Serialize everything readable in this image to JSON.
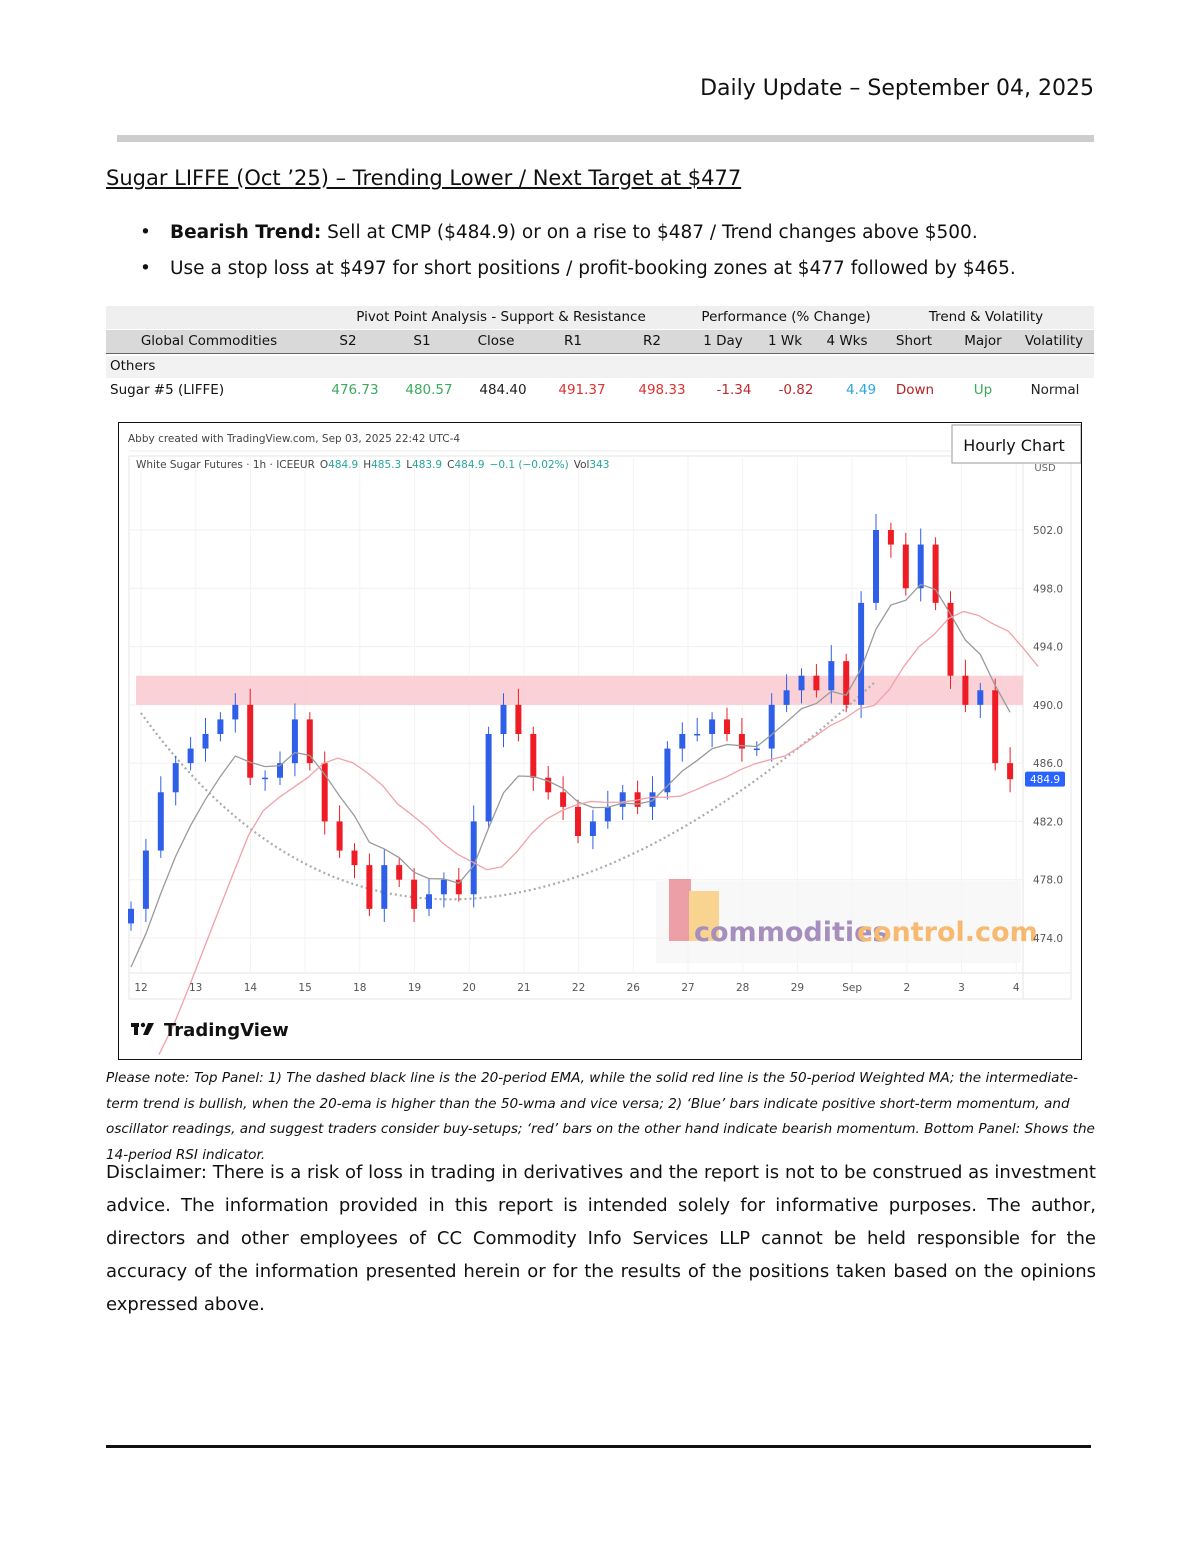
{
  "header": {
    "title": "Daily Update – September 04, 2025"
  },
  "heading": "Sugar LIFFE (Oct ’25) – Trending Lower / Next Target at $477",
  "bullets": [
    {
      "bold": "Bearish Trend:",
      "text": " Sell at CMP ($484.9) or on a rise to $487 / Trend changes above $500."
    },
    {
      "bold": "",
      "text": "Use a stop loss at $497 for short positions / profit-booking zones at $477 followed by $465."
    }
  ],
  "table": {
    "groups": [
      "Pivot Point Analysis - Support & Resistance",
      "Performance (% Change)",
      "Trend & Volatility"
    ],
    "columns": [
      "Global Commodities",
      "S2",
      "S1",
      "Close",
      "R1",
      "R2",
      "1 Day",
      "1 Wk",
      "4 Wks",
      "Short",
      "Major",
      "Volatility"
    ],
    "section": "Others",
    "row": {
      "name": "Sugar #5 (LIFFE)",
      "values": [
        "476.73",
        "480.57",
        "484.40",
        "491.37",
        "498.33",
        "-1.34",
        "-0.82",
        "4.49",
        "Down",
        "Up",
        "Normal"
      ]
    },
    "colors": {
      "support": "#3aaa5c",
      "resistance": "#e03030",
      "negative": "#c0282d",
      "positive": "#29a8e0",
      "down": "#b22222",
      "up": "#3aaa5c"
    }
  },
  "chart": {
    "badge": "Hourly Chart",
    "credit": "Abby created with TradingView.com, Sep 03, 2025 22:42 UTC-4",
    "symbol": "White Sugar Futures · 1h · ICEEUR",
    "ohlc": {
      "o_label": "O",
      "o": "484.9",
      "h_label": "H",
      "h": "485.3",
      "l_label": "L",
      "l": "483.9",
      "c_label": "C",
      "c": "484.9",
      "change": "−0.1 (−0.02%)",
      "vol_label": "Vol",
      "vol": "343"
    },
    "currency": "USD",
    "last_price": "484.9",
    "logo": "TradingView",
    "watermark": {
      "part1": "commodities",
      "part2": "control.com"
    },
    "colors": {
      "up": "#2f5fe8",
      "down": "#ee1c25",
      "ema": "#9a9a9a",
      "wma": "#f2a0a8",
      "zone": "#f9c9cf",
      "accent": "#26a69a",
      "price_tag": "#2962ff"
    }
  },
  "chart_data": {
    "type": "candlestick",
    "x_ticks": [
      "12",
      "13",
      "14",
      "15",
      "18",
      "19",
      "20",
      "21",
      "22",
      "26",
      "27",
      "28",
      "29",
      "Sep",
      "2",
      "3",
      "4"
    ],
    "y_ticks": [
      502.0,
      498.0,
      494.0,
      490.0,
      486.0,
      482.0,
      478.0,
      474.0
    ],
    "ylim": [
      472.6,
      504.3
    ],
    "resistance_zone": [
      490,
      492
    ],
    "closes": [
      476,
      480,
      484,
      486,
      487,
      488,
      489,
      490,
      485,
      485,
      486,
      489,
      486,
      482,
      480,
      479,
      476,
      479,
      478,
      476,
      477,
      478,
      477,
      482,
      488,
      490,
      488,
      485,
      484,
      483,
      481,
      482,
      483,
      484,
      483,
      484,
      487,
      488,
      488,
      489,
      488,
      487,
      487,
      490,
      491,
      492,
      491,
      493,
      490,
      497,
      502,
      501,
      498,
      501,
      497,
      492,
      490,
      491,
      486,
      484.9
    ],
    "series": [
      "20-period EMA",
      "50-period Weighted MA"
    ]
  },
  "note": "Please note: Top Panel: 1) The dashed black line is the 20-period EMA, while the solid red line is the 50-period Weighted MA; the intermediate-term trend is bullish, when the 20-ema is higher than the 50-wma and vice versa; 2)  ‘Blue’  bars indicate positive short-term momentum, and oscillator readings, and suggest traders consider buy-setups;  ‘red’  bars on the other hand indicate bearish momentum. Bottom Panel: Shows the 14-period RSI indicator.",
  "disclaimer": "Disclaimer: There is a risk of loss in trading in derivatives and the report is not to be construed as investment advice. The information provided in this report is intended solely for informative purposes. The author, directors and other employees of CC Commodity Info Services LLP cannot be held responsible for the accuracy of the information presented herein or for the results of the positions taken based on the opinions expressed above."
}
